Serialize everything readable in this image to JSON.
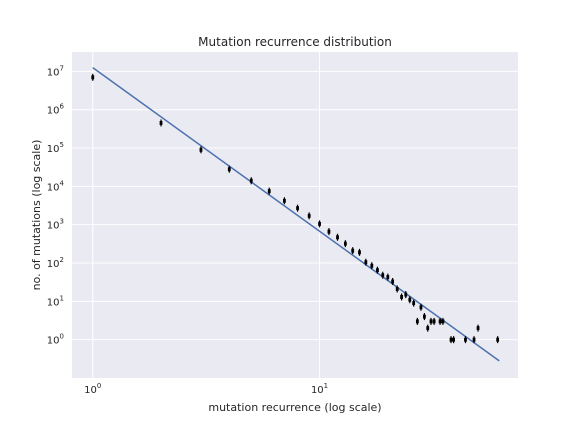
{
  "chart_data": {
    "type": "scatter",
    "title": "Mutation recurrence distribution",
    "xlabel": "mutation recurrence (log scale)",
    "ylabel": "no. of mutations (log scale)",
    "x_scale": "log",
    "y_scale": "log",
    "xlim": [
      0.81,
      75
    ],
    "ylim": [
      0.1,
      32000000
    ],
    "grid": true,
    "background": "#eaeaf2",
    "x_ticks": [
      {
        "value": 1,
        "base": "10",
        "exp": "0"
      },
      {
        "value": 10,
        "base": "10",
        "exp": "1"
      }
    ],
    "y_ticks": [
      {
        "value": 1,
        "base": "10",
        "exp": "0"
      },
      {
        "value": 10,
        "base": "10",
        "exp": "1"
      },
      {
        "value": 100,
        "base": "10",
        "exp": "2"
      },
      {
        "value": 1000,
        "base": "10",
        "exp": "3"
      },
      {
        "value": 10000,
        "base": "10",
        "exp": "4"
      },
      {
        "value": 100000,
        "base": "10",
        "exp": "5"
      },
      {
        "value": 1000000,
        "base": "10",
        "exp": "6"
      },
      {
        "value": 10000000,
        "base": "10",
        "exp": "7"
      }
    ],
    "points": [
      [
        1,
        7000000
      ],
      [
        2,
        450000
      ],
      [
        3,
        90000
      ],
      [
        4,
        28000
      ],
      [
        5,
        14000
      ],
      [
        6,
        7500
      ],
      [
        7,
        4200
      ],
      [
        8,
        2700
      ],
      [
        9,
        1700
      ],
      [
        10,
        1050
      ],
      [
        11,
        660
      ],
      [
        12,
        470
      ],
      [
        13,
        320
      ],
      [
        14,
        210
      ],
      [
        15,
        190
      ],
      [
        16,
        105
      ],
      [
        17,
        85
      ],
      [
        18,
        65
      ],
      [
        19,
        48
      ],
      [
        20,
        43
      ],
      [
        21,
        33
      ],
      [
        22,
        21
      ],
      [
        23,
        13
      ],
      [
        24,
        15
      ],
      [
        25,
        11
      ],
      [
        26,
        9
      ],
      [
        27,
        3
      ],
      [
        28,
        7
      ],
      [
        29,
        4
      ],
      [
        30,
        2
      ],
      [
        31,
        3
      ],
      [
        32,
        3
      ],
      [
        34,
        3
      ],
      [
        35,
        3
      ],
      [
        38,
        1
      ],
      [
        39,
        1
      ],
      [
        44,
        1
      ],
      [
        48,
        1
      ],
      [
        50,
        2
      ],
      [
        61,
        1
      ]
    ],
    "fit_line": {
      "x": [
        1,
        62
      ],
      "y": [
        12500000,
        0.28
      ]
    },
    "colors": {
      "points": "#000000",
      "fit_line": "#4c72b0",
      "grid": "#ffffff"
    }
  }
}
